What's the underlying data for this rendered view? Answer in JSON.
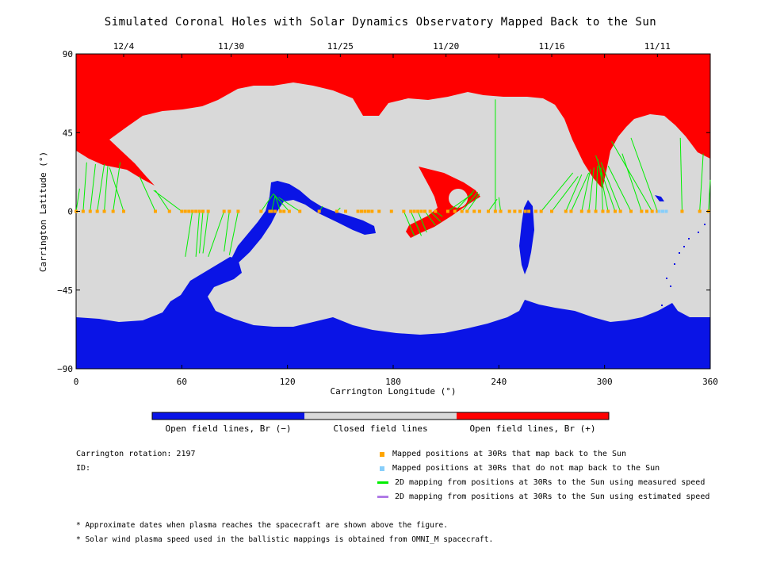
{
  "title": "Simulated Coronal Holes with Solar Dynamics Observatory Mapped Back to the Sun",
  "chart_data": {
    "type": "map",
    "xlabel": "Carrington Longitude (°)",
    "ylabel": "Carrington Latitude (°)",
    "xlim": [
      0,
      360
    ],
    "ylim": [
      -90,
      90
    ],
    "x_ticks": [
      0,
      60,
      120,
      180,
      240,
      300,
      360
    ],
    "y_ticks": [
      -90,
      -45,
      0,
      45,
      90
    ],
    "top_dates": [
      {
        "lon": 27,
        "label": "12/4"
      },
      {
        "lon": 88,
        "label": "11/30"
      },
      {
        "lon": 150,
        "label": "11/25"
      },
      {
        "lon": 210,
        "label": "11/20"
      },
      {
        "lon": 270,
        "label": "11/16"
      },
      {
        "lon": 330,
        "label": "11/11"
      }
    ],
    "colors": {
      "open_negative": "#0a14e6",
      "closed": "#d9d9d9",
      "open_positive": "#ff0000",
      "mapped_point": "#ffa500",
      "unmapped_point": "#87cefa",
      "measured_line": "#00ee00",
      "estimated_line": "#b07be6"
    },
    "mapped_longitudes": [
      0,
      4,
      8,
      12,
      16,
      21,
      27,
      45,
      53,
      60,
      62,
      64,
      66,
      68,
      70,
      72,
      75,
      84,
      87,
      92,
      105,
      110,
      111,
      113,
      116,
      118,
      121,
      127,
      138,
      148,
      153,
      160,
      162,
      164,
      166,
      168,
      172,
      179,
      186,
      190,
      192,
      194,
      196,
      198,
      201,
      204,
      211,
      215,
      219,
      222,
      226,
      229,
      234,
      238,
      241,
      246,
      249,
      252,
      255,
      257,
      261,
      264,
      270,
      278,
      281,
      287,
      291,
      295,
      299,
      302,
      306,
      309,
      315,
      321,
      324,
      327,
      330,
      344,
      354,
      359
    ],
    "unmapped_longitudes": [
      331,
      333,
      335
    ],
    "measured_lines": [
      [
        0,
        0,
        2,
        13
      ],
      [
        4,
        0,
        6,
        28
      ],
      [
        8,
        0,
        11,
        27
      ],
      [
        12,
        0,
        16,
        27
      ],
      [
        16,
        0,
        18,
        26
      ],
      [
        21,
        0,
        25,
        28
      ],
      [
        27,
        0,
        19,
        25
      ],
      [
        45,
        0,
        36,
        20
      ],
      [
        53,
        0,
        45,
        12
      ],
      [
        60,
        0,
        44,
        12
      ],
      [
        62,
        -26,
        66,
        0
      ],
      [
        68,
        -26,
        70,
        0
      ],
      [
        70,
        -24,
        72,
        0
      ],
      [
        72,
        -24,
        75,
        0
      ],
      [
        75,
        -26,
        84,
        0
      ],
      [
        84,
        -23,
        87,
        0
      ],
      [
        87,
        -25,
        92,
        0
      ],
      [
        105,
        0,
        112,
        10
      ],
      [
        111,
        0,
        113,
        9
      ],
      [
        116,
        0,
        113,
        9
      ],
      [
        121,
        0,
        112,
        10
      ],
      [
        127,
        0,
        115,
        8
      ],
      [
        138,
        0,
        140,
        3
      ],
      [
        148,
        0,
        150,
        2
      ],
      [
        186,
        0,
        192,
        -14
      ],
      [
        190,
        0,
        196,
        -14
      ],
      [
        194,
        0,
        199,
        -12
      ],
      [
        198,
        0,
        204,
        -8
      ],
      [
        201,
        0,
        207,
        -6
      ],
      [
        204,
        0,
        208,
        -3
      ],
      [
        211,
        0,
        225,
        10
      ],
      [
        215,
        0,
        226,
        12
      ],
      [
        219,
        0,
        228,
        11
      ],
      [
        222,
        0,
        229,
        10
      ],
      [
        234,
        0,
        239,
        7
      ],
      [
        238,
        0,
        238,
        64
      ],
      [
        241,
        0,
        240,
        8
      ],
      [
        264,
        0,
        282,
        22
      ],
      [
        270,
        0,
        285,
        20
      ],
      [
        278,
        0,
        287,
        21
      ],
      [
        281,
        0,
        291,
        22
      ],
      [
        287,
        0,
        292,
        24
      ],
      [
        291,
        0,
        294,
        25
      ],
      [
        295,
        0,
        296,
        26
      ],
      [
        299,
        0,
        298,
        25
      ],
      [
        302,
        0,
        296,
        30
      ],
      [
        306,
        0,
        295,
        32
      ],
      [
        309,
        0,
        298,
        28
      ],
      [
        315,
        0,
        302,
        26
      ],
      [
        321,
        0,
        310,
        33
      ],
      [
        327,
        0,
        304,
        40
      ],
      [
        330,
        0,
        315,
        42
      ],
      [
        344,
        0,
        343,
        42
      ],
      [
        354,
        0,
        356,
        33
      ],
      [
        359,
        0,
        360,
        18
      ]
    ],
    "colorbar": {
      "labels": [
        "Open field lines, Br (−)",
        "Closed field lines",
        "Open field lines, Br (+)"
      ]
    }
  },
  "info": {
    "rotation": "Carrington rotation: 2197",
    "id": "ID:"
  },
  "legend": [
    {
      "label": "Mapped positions at 30Rs that map back to the Sun",
      "kind": "square",
      "color": "#ffa500"
    },
    {
      "label": "Mapped positions at 30Rs that do not map back to the Sun",
      "kind": "square",
      "color": "#87cefa"
    },
    {
      "label": "2D mapping from positions at 30Rs to the Sun using measured speed",
      "kind": "line",
      "color": "#00ee00"
    },
    {
      "label": "2D mapping from positions at 30Rs to the Sun using estimated speed",
      "kind": "line",
      "color": "#b07be6"
    }
  ],
  "notes": [
    "* Approximate dates when plasma reaches the spacecraft are shown above the figure.",
    "* Solar wind plasma speed used in the ballistic mappings is obtained from OMNI_M spacecraft."
  ]
}
